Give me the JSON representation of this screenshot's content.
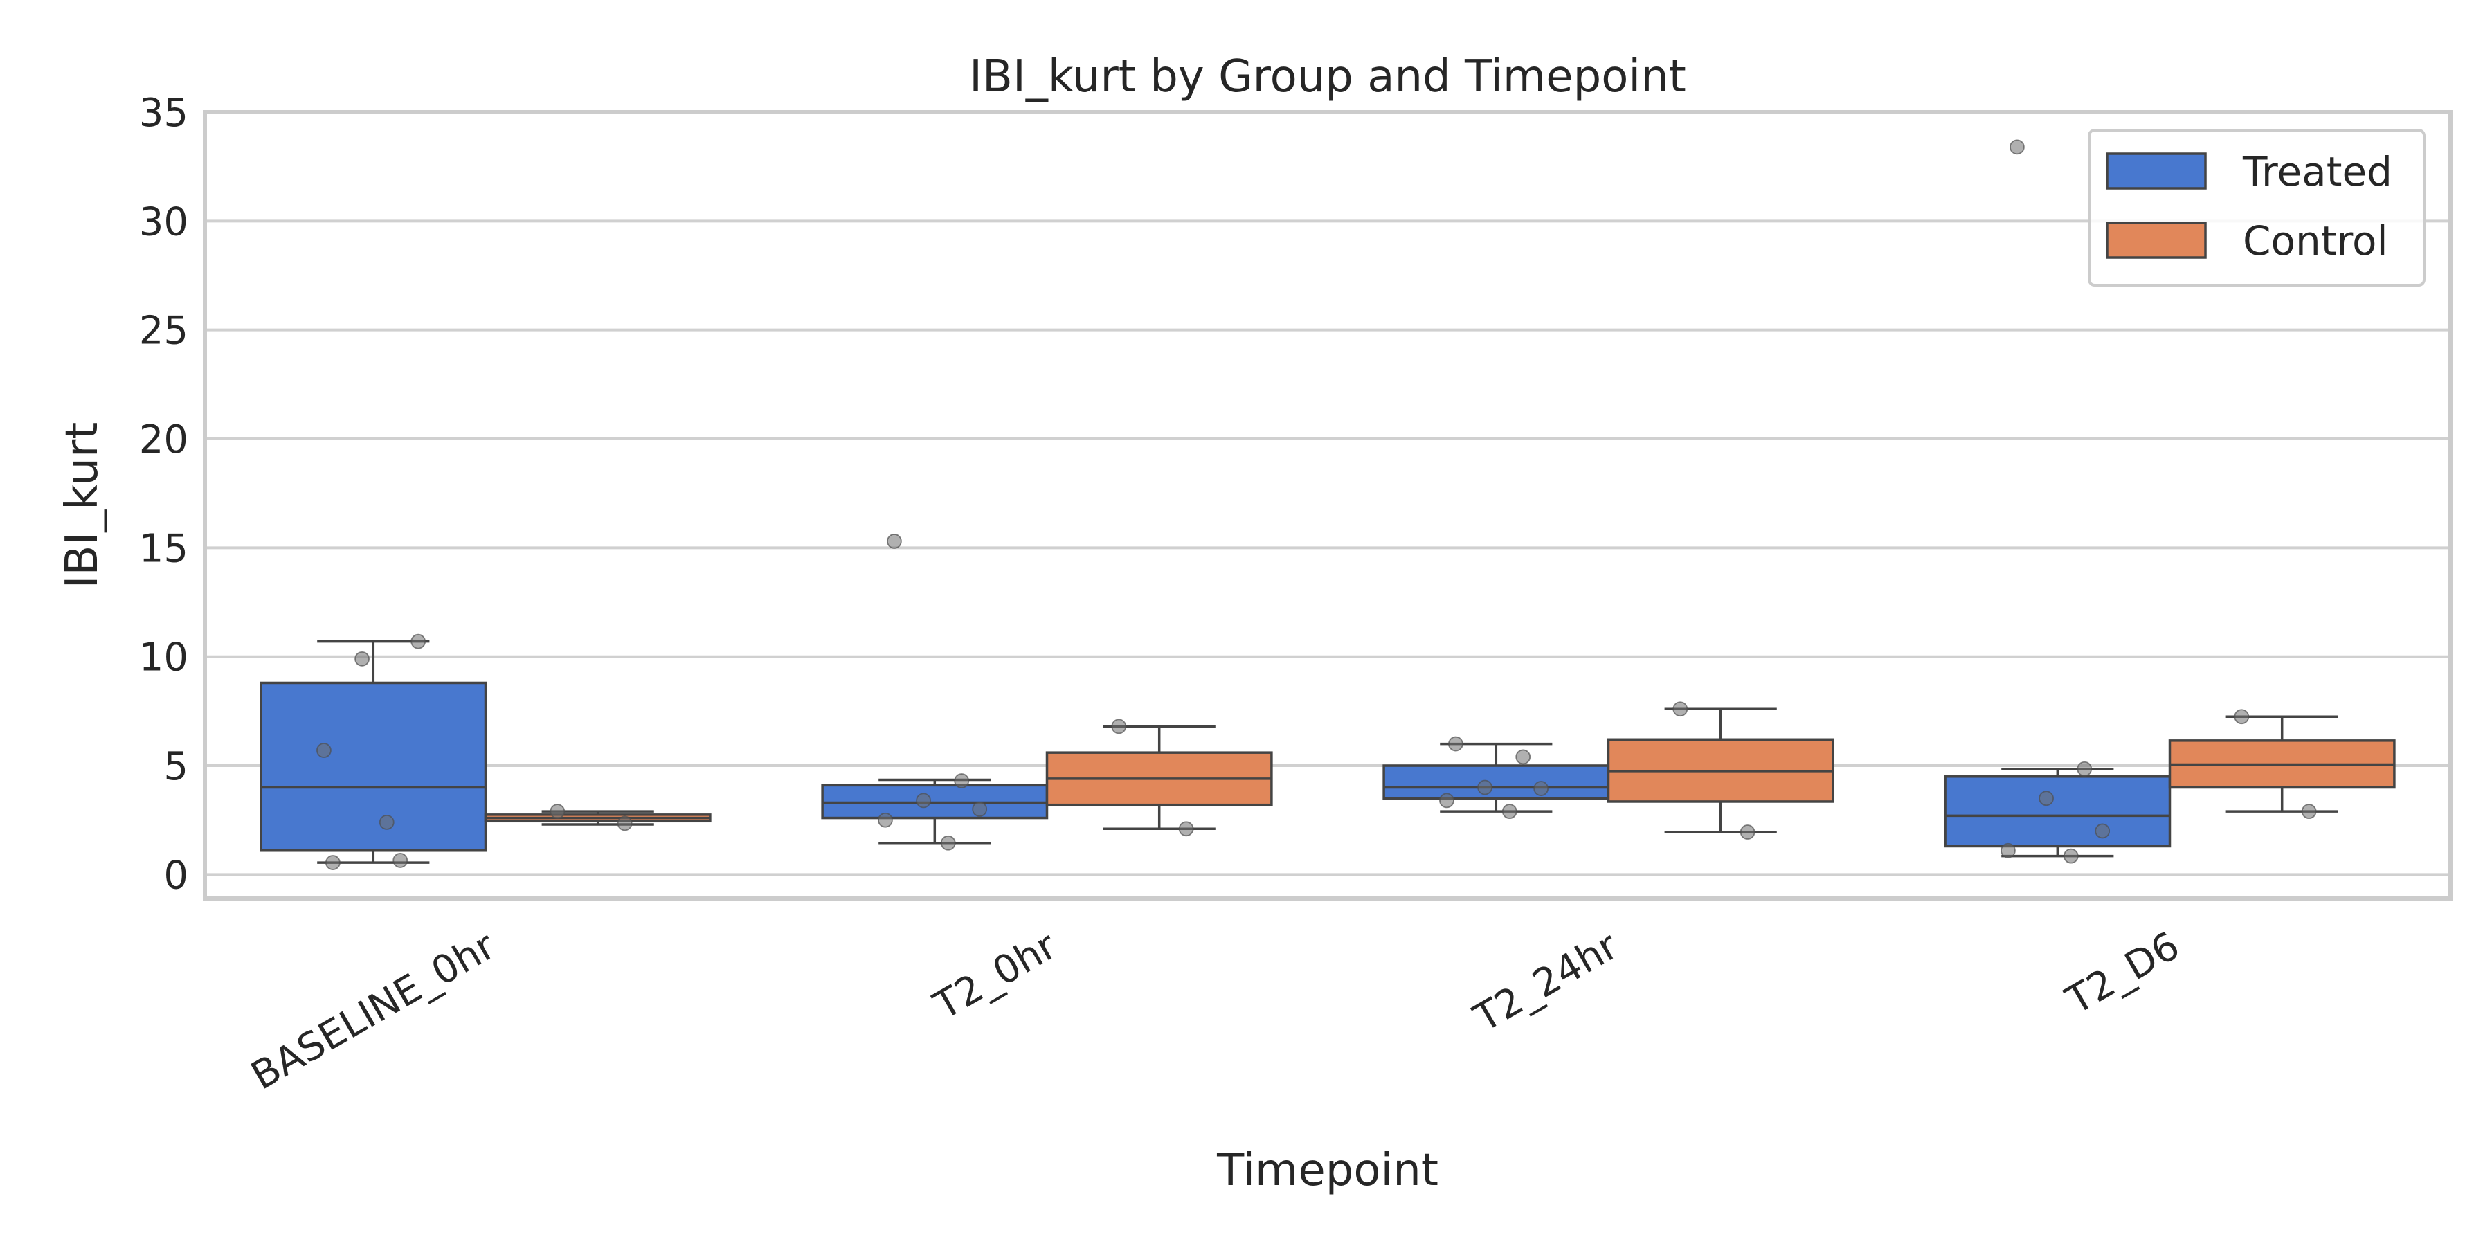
{
  "chart_data": {
    "type": "box",
    "title": "IBI_kurt by Group and Timepoint",
    "xlabel": "Timepoint",
    "ylabel": "IBI_kurt",
    "ylim": [
      -1.1,
      35
    ],
    "yticks": [
      0,
      5,
      10,
      15,
      20,
      25,
      30,
      35
    ],
    "grid": true,
    "legend_position": "top-right",
    "categories": [
      "BASELINE_0hr",
      "T2_0hr",
      "T2_24hr",
      "T2_D6"
    ],
    "series": [
      {
        "name": "Treated",
        "color": "#4878CF",
        "boxes": [
          {
            "q1": 1.1,
            "median": 4.0,
            "q3": 8.8,
            "whisker_low": 0.55,
            "whisker_high": 10.7
          },
          {
            "q1": 2.6,
            "median": 3.3,
            "q3": 4.1,
            "whisker_low": 1.45,
            "whisker_high": 4.35
          },
          {
            "q1": 3.5,
            "median": 4.0,
            "q3": 5.0,
            "whisker_low": 2.9,
            "whisker_high": 6.0
          },
          {
            "q1": 1.3,
            "median": 2.7,
            "q3": 4.5,
            "whisker_low": 0.85,
            "whisker_high": 4.85
          }
        ],
        "points": [
          [
            0.55,
            0.65,
            9.9,
            10.7,
            5.7,
            2.4
          ],
          [
            15.3,
            4.3,
            3.4,
            3.0,
            2.5,
            1.45
          ],
          [
            6.0,
            5.4,
            4.0,
            3.95,
            3.4,
            2.9
          ],
          [
            33.4,
            4.85,
            3.5,
            2.0,
            1.1,
            0.85
          ]
        ]
      },
      {
        "name": "Control",
        "color": "#E1875A",
        "boxes": [
          {
            "q1": 2.45,
            "median": 2.6,
            "q3": 2.75,
            "whisker_low": 2.3,
            "whisker_high": 2.9
          },
          {
            "q1": 3.2,
            "median": 4.4,
            "q3": 5.6,
            "whisker_low": 2.1,
            "whisker_high": 6.8
          },
          {
            "q1": 3.35,
            "median": 4.75,
            "q3": 6.2,
            "whisker_low": 1.95,
            "whisker_high": 7.6
          },
          {
            "q1": 4.0,
            "median": 5.05,
            "q3": 6.15,
            "whisker_low": 2.9,
            "whisker_high": 7.25
          }
        ],
        "points": [
          [
            2.9,
            2.35
          ],
          [
            6.8,
            2.1
          ],
          [
            7.6,
            1.95
          ],
          [
            7.25,
            2.9
          ]
        ]
      }
    ]
  }
}
